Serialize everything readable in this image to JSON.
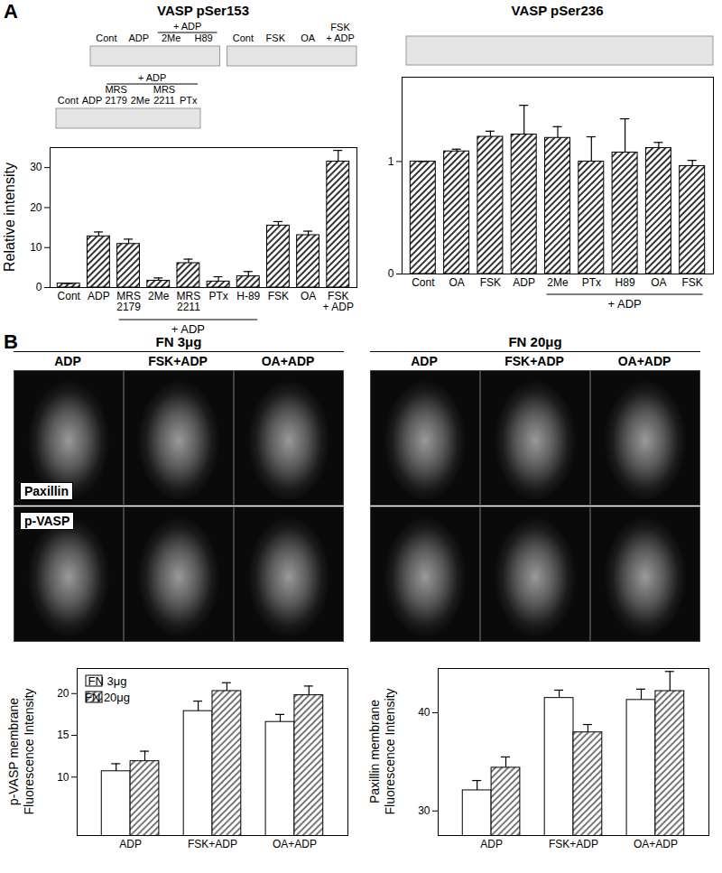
{
  "chart_data": [
    {
      "type": "bar",
      "title": "VASP pSer153",
      "ylabel": "Relative intensity",
      "categories": [
        "Cont",
        "ADP",
        "MRS\n2179",
        "2Me",
        "MRS\n2211",
        "PTx",
        "H-89",
        "FSK",
        "OA",
        "FSK\n+ ADP"
      ],
      "values": [
        1,
        12.8,
        10.9,
        1.7,
        6.1,
        1.5,
        2.8,
        15.5,
        13.1,
        31.5
      ],
      "errors": [
        0,
        1.1,
        1.2,
        0.7,
        1.0,
        1.2,
        1.2,
        1.0,
        1.0,
        2.8
      ],
      "color": "#000000",
      "ylim": [
        0,
        35
      ],
      "yticks": [
        0,
        10,
        20,
        30
      ],
      "annotations": [
        {
          "text": "+ ADP",
          "categories": [
            "MRS\n2179",
            "2Me",
            "MRS\n2211",
            "PTx",
            "H-89"
          ]
        }
      ]
    },
    {
      "type": "bar",
      "title": "VASP pSer236",
      "categories": [
        "Cont",
        "OA",
        "FSK",
        "ADP",
        "2Me",
        "PTx",
        "H89",
        "OA",
        "FSK"
      ],
      "values": [
        1.0,
        1.09,
        1.22,
        1.24,
        1.21,
        1.0,
        1.08,
        1.12,
        0.96
      ],
      "errors": [
        0,
        0.02,
        0.05,
        0.26,
        0.1,
        0.22,
        0.3,
        0.05,
        0.05
      ],
      "color": "#000000",
      "ylim": [
        0,
        1.75
      ],
      "yticks": [
        0,
        1
      ],
      "annotations": [
        {
          "text": "+ ADP",
          "categories": [
            "2Me",
            "PTx",
            "H89",
            "OA",
            "FSK"
          ]
        }
      ]
    },
    {
      "type": "bar",
      "ylabel": "p-VASP membrane\nFluorescence Intensity",
      "categories": [
        "ADP",
        "FSK+ADP",
        "OA+ADP"
      ],
      "series": [
        {
          "name": "FN 3μg",
          "color": "#ffffff",
          "values": [
            10.7,
            17.9,
            16.6
          ],
          "errors": [
            0.9,
            1.2,
            0.9
          ]
        },
        {
          "name": "FN 20μg",
          "color": "#555555",
          "values": [
            11.9,
            20.3,
            19.8
          ],
          "errors": [
            1.2,
            1.0,
            1.1
          ]
        }
      ],
      "ylim": [
        3,
        23
      ],
      "yticks": [
        10,
        15,
        20
      ],
      "legend": "top-left"
    },
    {
      "type": "bar",
      "ylabel": "Paxillin membrane\nFluorescence Intensity",
      "categories": [
        "ADP",
        "FSK+ADP",
        "OA+ADP"
      ],
      "series": [
        {
          "color": "#ffffff",
          "values": [
            32.1,
            41.5,
            41.3
          ],
          "errors": [
            1.0,
            0.8,
            1.1
          ]
        },
        {
          "color": "#555555",
          "values": [
            34.4,
            38.0,
            42.2
          ],
          "errors": [
            1.1,
            0.8,
            2.0
          ]
        }
      ],
      "ylim": [
        27.5,
        44.5
      ],
      "yticks": [
        30,
        40
      ]
    }
  ],
  "figure": {
    "panel_labels": [
      "A",
      "B"
    ],
    "blots": [
      {
        "segments": [
          {
            "lanes": [
              "Cont",
              "ADP",
              "2Me",
              "H89"
            ],
            "annotation": {
              "text": "+ ADP",
              "lanes": [
                "2Me",
                "H89"
              ]
            }
          },
          {
            "lanes": [
              "Cont",
              "FSK",
              "OA",
              "FSK\n+ ADP"
            ]
          }
        ]
      },
      {
        "segments": [
          {
            "lanes": [
              "Cont",
              "ADP",
              "MRS\n2179",
              "2Me",
              "MRS\n2211",
              "PTx"
            ],
            "annotation": {
              "text": "+ ADP",
              "lanes": [
                "MRS\n2179",
                "2Me",
                "MRS\n2211",
                "PTx"
              ]
            }
          }
        ]
      }
    ],
    "micrographs": {
      "rows": [
        "Paxillin",
        "p-VASP"
      ],
      "groups": [
        {
          "title": "FN 3μg",
          "columns": [
            "ADP",
            "FSK+ADP",
            "OA+ADP"
          ]
        },
        {
          "title": "FN 20μg",
          "columns": [
            "ADP",
            "FSK+ADP",
            "OA+ADP"
          ]
        }
      ]
    }
  }
}
